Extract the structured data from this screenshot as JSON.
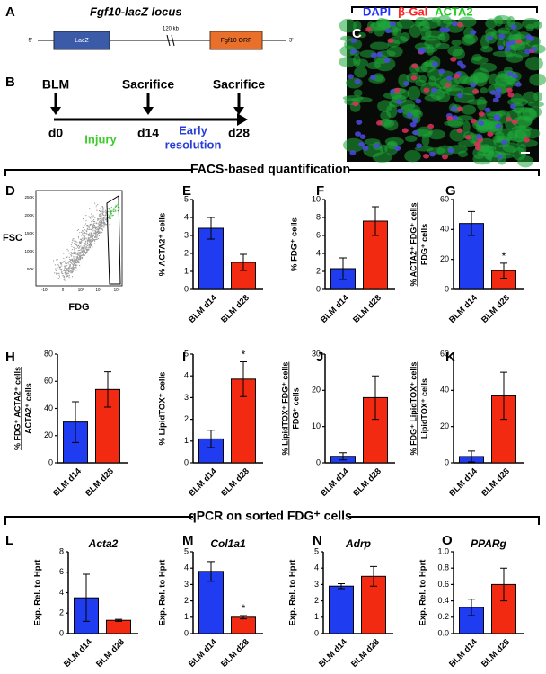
{
  "panel_a": {
    "label": "A",
    "title": "Fgf10-lacZ locus",
    "five_prime": "5'",
    "lacz": "LacZ",
    "distance": "120 kb",
    "orf": "Fgf10 ORF",
    "three_prime": "3'"
  },
  "panel_b": {
    "label": "B",
    "events": [
      "BLM",
      "Sacrifice",
      "Sacrifice"
    ],
    "days": [
      "d0",
      "d14",
      "d28"
    ],
    "phase_1": "Injury",
    "phase_2": [
      "Early",
      "resolution"
    ]
  },
  "panel_c": {
    "label": "C",
    "stains": [
      {
        "name": "DAPI",
        "color": "#2233ff"
      },
      {
        "name": "β-Gal",
        "color": "#ff2222"
      },
      {
        "name": "ACTA2",
        "color": "#22cc22"
      }
    ]
  },
  "section_headers": [
    "FACS-based quantification",
    "qPCR on sorted FDG⁺ cells"
  ],
  "panel_d": {
    "label": "D",
    "ylabel": "FSC",
    "xlabel": "FDG",
    "yticks": [
      "250K",
      "200K",
      "150K",
      "100K",
      "50K"
    ],
    "xticks": [
      "-10³",
      "0",
      "10³",
      "10⁴",
      "10⁵"
    ]
  },
  "chart_data": [
    {
      "type": "bar",
      "panel": "E",
      "ylabel": [
        "% ACTA2⁺ cells"
      ],
      "categories": [
        "BLM d14",
        "BLM d28"
      ],
      "values": [
        3.4,
        1.5
      ],
      "errors": [
        0.6,
        0.45
      ],
      "colors": [
        "#1f3cf0",
        "#f22a12"
      ],
      "ylim": [
        0,
        5
      ],
      "yticks": [
        0,
        1,
        2,
        3,
        4,
        5
      ]
    },
    {
      "type": "bar",
      "panel": "F",
      "ylabel": [
        "% FDG⁺ cells"
      ],
      "categories": [
        "BLM d14",
        "BLM d28"
      ],
      "values": [
        2.3,
        7.6
      ],
      "errors": [
        1.2,
        1.6
      ],
      "colors": [
        "#1f3cf0",
        "#f22a12"
      ],
      "ylim": [
        0,
        10
      ],
      "yticks": [
        0,
        2,
        4,
        6,
        8,
        10
      ]
    },
    {
      "type": "bar",
      "panel": "G",
      "ylabel": [
        "% ACTA2⁺ FDG⁺ cells",
        "FDG⁺ cells"
      ],
      "categories": [
        "BLM d14",
        "BLM d28"
      ],
      "values": [
        44,
        12.5
      ],
      "errors": [
        8,
        5
      ],
      "colors": [
        "#1f3cf0",
        "#f22a12"
      ],
      "ylim": [
        0,
        60
      ],
      "yticks": [
        0,
        20,
        40,
        60
      ],
      "annotations": [
        {
          "text": "*",
          "category": "BLM d28"
        }
      ]
    },
    {
      "type": "bar",
      "panel": "H",
      "ylabel": [
        "% FDG⁺ ACTA2⁺ cells",
        "ACTA2⁺ cells"
      ],
      "categories": [
        "BLM d14",
        "BLM d28"
      ],
      "values": [
        30,
        54
      ],
      "errors": [
        15,
        13
      ],
      "colors": [
        "#1f3cf0",
        "#f22a12"
      ],
      "ylim": [
        0,
        80
      ],
      "yticks": [
        0,
        20,
        40,
        60,
        80
      ]
    },
    {
      "type": "bar",
      "panel": "I",
      "ylabel": [
        "% LipidTOX⁺ cells"
      ],
      "categories": [
        "BLM d14",
        "BLM d28"
      ],
      "values": [
        1.1,
        3.85
      ],
      "errors": [
        0.4,
        0.8
      ],
      "colors": [
        "#1f3cf0",
        "#f22a12"
      ],
      "ylim": [
        0,
        5
      ],
      "yticks": [
        0,
        1,
        2,
        3,
        4,
        5
      ],
      "annotations": [
        {
          "text": "*",
          "category": "BLM d28"
        }
      ]
    },
    {
      "type": "bar",
      "panel": "J",
      "ylabel": [
        "% LipidTOX⁺ FDG⁺ cells",
        "FDG⁺ cells"
      ],
      "categories": [
        "BLM d14",
        "BLM d28"
      ],
      "values": [
        1.8,
        18
      ],
      "errors": [
        1,
        6
      ],
      "colors": [
        "#1f3cf0",
        "#f22a12"
      ],
      "ylim": [
        0,
        30
      ],
      "yticks": [
        0,
        10,
        20,
        30
      ]
    },
    {
      "type": "bar",
      "panel": "K",
      "ylabel": [
        "% FDG⁺ LipidTOX⁺ cells",
        "LipidTOX⁺ cells"
      ],
      "categories": [
        "BLM d14",
        "BLM d28"
      ],
      "values": [
        3.5,
        37
      ],
      "errors": [
        3,
        13
      ],
      "colors": [
        "#1f3cf0",
        "#f22a12"
      ],
      "ylim": [
        0,
        60
      ],
      "yticks": [
        0,
        20,
        40,
        60
      ]
    },
    {
      "type": "bar",
      "panel": "L",
      "title": "Acta2",
      "ylabel": [
        "Exp. Rel. to Hprt"
      ],
      "categories": [
        "BLM d14",
        "BLM d28"
      ],
      "values": [
        3.5,
        1.3
      ],
      "errors": [
        2.3,
        0.1
      ],
      "colors": [
        "#1f3cf0",
        "#f22a12"
      ],
      "ylim": [
        0,
        8
      ],
      "yticks": [
        0,
        2,
        4,
        6,
        8
      ]
    },
    {
      "type": "bar",
      "panel": "M",
      "title": "Col1a1",
      "ylabel": [
        "Exp. Rel. to Hprt"
      ],
      "categories": [
        "BLM d14",
        "BLM d28"
      ],
      "values": [
        3.8,
        1.0
      ],
      "errors": [
        0.6,
        0.1
      ],
      "colors": [
        "#1f3cf0",
        "#f22a12"
      ],
      "ylim": [
        0,
        5
      ],
      "yticks": [
        0,
        1,
        2,
        3,
        4,
        5
      ],
      "annotations": [
        {
          "text": "*",
          "category": "BLM d28"
        }
      ]
    },
    {
      "type": "bar",
      "panel": "N",
      "title": "Adrp",
      "ylabel": [
        "Exp. Rel. to Hprt"
      ],
      "categories": [
        "BLM d14",
        "BLM d28"
      ],
      "values": [
        2.9,
        3.5
      ],
      "errors": [
        0.15,
        0.6
      ],
      "colors": [
        "#1f3cf0",
        "#f22a12"
      ],
      "ylim": [
        0,
        5
      ],
      "yticks": [
        0,
        1,
        2,
        3,
        4,
        5
      ]
    },
    {
      "type": "bar",
      "panel": "O",
      "title": "PPARg",
      "ylabel": [
        "Exp. Rel. to Hprt"
      ],
      "categories": [
        "BLM d14",
        "BLM d28"
      ],
      "values": [
        0.32,
        0.6
      ],
      "errors": [
        0.1,
        0.2
      ],
      "colors": [
        "#1f3cf0",
        "#f22a12"
      ],
      "ylim": [
        0,
        1
      ],
      "yticks": [
        {
          "value": 0,
          "label": "0.0"
        },
        0.2,
        0.4,
        0.6,
        0.8,
        {
          "value": 1,
          "label": "1.0"
        }
      ]
    }
  ]
}
